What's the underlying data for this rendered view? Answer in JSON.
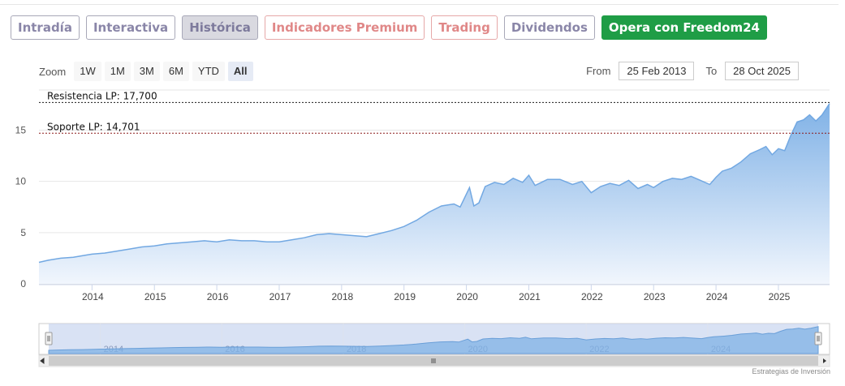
{
  "tabs": [
    {
      "label": "Intradía"
    },
    {
      "label": "Interactiva"
    },
    {
      "label": "Histórica"
    },
    {
      "label": "Indicadores Premium"
    },
    {
      "label": "Trading"
    },
    {
      "label": "Dividendos"
    },
    {
      "label": "Opera con Freedom24"
    }
  ],
  "zoom": {
    "label": "Zoom",
    "buttons": [
      "1W",
      "1M",
      "3M",
      "6M",
      "YTD",
      "All"
    ],
    "selected": "All"
  },
  "range": {
    "from_label": "From",
    "from_value": "25 Feb 2013",
    "to_label": "To",
    "to_value": "28 Oct 2025"
  },
  "footer": "Estrategias de Inversión",
  "colors": {
    "area_top": "#7fb1e6",
    "area_bottom": "#f1f6fd",
    "line": "#72a8e2",
    "resistance": "#1a1a1a",
    "support": "#8b1a1a",
    "cta": "#1f9d46"
  },
  "chart_data": {
    "type": "area",
    "x_range": [
      "2013-02-25",
      "2025-10-28"
    ],
    "ylim": [
      0,
      19
    ],
    "yticks": [
      0,
      5,
      10,
      15
    ],
    "xticks": [
      "2014",
      "2015",
      "2016",
      "2017",
      "2018",
      "2019",
      "2020",
      "2021",
      "2022",
      "2023",
      "2024",
      "2025"
    ],
    "grid": true,
    "annotations": [
      {
        "label": "Resistencia LP: 17,700",
        "value": 17.7,
        "style": "dashed"
      },
      {
        "label": "Soporte LP: 14,701",
        "value": 14.701,
        "style": "dashed"
      }
    ],
    "navigator_ticks": [
      "2014",
      "2016",
      "2018",
      "2020",
      "2022",
      "2024"
    ],
    "series": [
      {
        "x": [
          2013.15,
          2013.3,
          2013.5,
          2013.7,
          2013.9,
          2014.0,
          2014.2,
          2014.4,
          2014.6,
          2014.8,
          2015.0,
          2015.2,
          2015.4,
          2015.6,
          2015.8,
          2016.0,
          2016.2,
          2016.4,
          2016.6,
          2016.8,
          2017.0,
          2017.2,
          2017.4,
          2017.6,
          2017.8,
          2018.0,
          2018.2,
          2018.4,
          2018.6,
          2018.8,
          2019.0,
          2019.2,
          2019.4,
          2019.6,
          2019.8,
          2019.9,
          2020.05,
          2020.12,
          2020.2,
          2020.3,
          2020.45,
          2020.6,
          2020.75,
          2020.9,
          2021.0,
          2021.1,
          2021.3,
          2021.5,
          2021.7,
          2021.85,
          2022.0,
          2022.15,
          2022.3,
          2022.45,
          2022.6,
          2022.75,
          2022.9,
          2023.0,
          2023.15,
          2023.3,
          2023.45,
          2023.6,
          2023.75,
          2023.9,
          2024.0,
          2024.1,
          2024.25,
          2024.4,
          2024.55,
          2024.7,
          2024.8,
          2024.9,
          2025.0,
          2025.1,
          2025.2,
          2025.3,
          2025.4,
          2025.5,
          2025.6,
          2025.7,
          2025.82
        ],
        "y": [
          2.1,
          2.3,
          2.5,
          2.6,
          2.8,
          2.9,
          3.0,
          3.2,
          3.4,
          3.6,
          3.7,
          3.9,
          4.0,
          4.1,
          4.2,
          4.1,
          4.3,
          4.2,
          4.2,
          4.1,
          4.1,
          4.3,
          4.5,
          4.8,
          4.9,
          4.8,
          4.7,
          4.6,
          4.9,
          5.2,
          5.6,
          6.2,
          7.0,
          7.6,
          7.8,
          7.5,
          9.4,
          7.6,
          7.9,
          9.5,
          9.9,
          9.7,
          10.3,
          9.9,
          10.6,
          9.6,
          10.2,
          10.2,
          9.7,
          10.0,
          8.9,
          9.5,
          9.8,
          9.6,
          10.1,
          9.3,
          9.7,
          9.4,
          10.0,
          10.3,
          10.2,
          10.5,
          10.1,
          9.7,
          10.4,
          11.0,
          11.3,
          11.9,
          12.7,
          13.1,
          13.4,
          12.6,
          13.2,
          13.0,
          14.5,
          15.8,
          16.0,
          16.5,
          15.9,
          16.5,
          17.6
        ]
      }
    ]
  }
}
